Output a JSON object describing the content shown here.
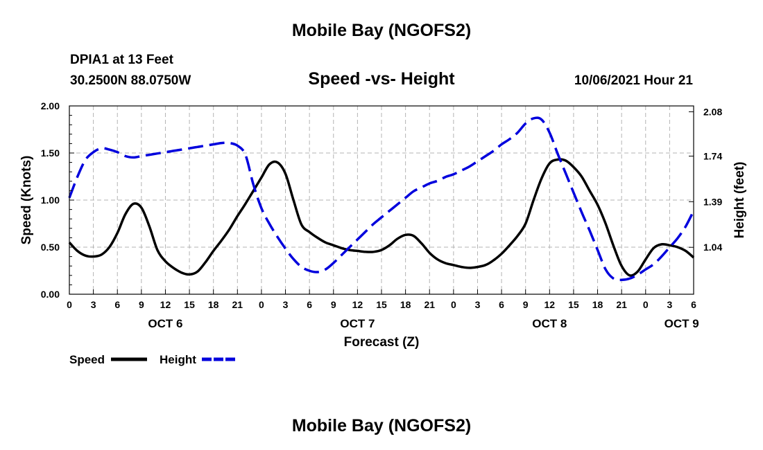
{
  "page": {
    "title_top": "Mobile Bay (NGOFS2)",
    "title_bottom": "Mobile Bay (NGOFS2)",
    "station_line": "DPIA1 at 13 Feet",
    "coords_line": "30.2500N  88.0750W",
    "chart_title": "Speed -vs- Height",
    "datetime": "10/06/2021 Hour 21"
  },
  "chart_data": {
    "type": "line",
    "title": "Speed -vs- Height",
    "xlabel": "Forecast (Z)",
    "ylabel": "Speed (Knots)",
    "y2label": "Height (feet)",
    "x_range_hours": [
      0,
      78
    ],
    "x_ticks_hours": [
      0,
      3,
      6,
      9,
      12,
      15,
      18,
      21,
      24,
      27,
      30,
      33,
      36,
      39,
      42,
      45,
      48,
      51,
      54,
      57,
      60,
      63,
      66,
      69,
      72,
      75,
      78
    ],
    "x_tick_labels": [
      "0",
      "3",
      "6",
      "9",
      "12",
      "15",
      "18",
      "21",
      "0",
      "3",
      "6",
      "9",
      "12",
      "15",
      "18",
      "21",
      "0",
      "3",
      "6",
      "9",
      "12",
      "15",
      "18",
      "21",
      "0",
      "3",
      "6"
    ],
    "day_labels": [
      {
        "label": "OCT 6",
        "hour": 12
      },
      {
        "label": "OCT 7",
        "hour": 36
      },
      {
        "label": "OCT 8",
        "hour": 60
      },
      {
        "label": "OCT 9",
        "hour": 76.5
      }
    ],
    "ylim": [
      0,
      2
    ],
    "y_ticks": [
      0,
      0.5,
      1.0,
      1.5,
      2.0
    ],
    "y_tick_labels": [
      "0.00",
      "0.50",
      "1.00",
      "1.50",
      "2.00"
    ],
    "y2lim": [
      0.68,
      2.125
    ],
    "y2_ticks": [
      1.04,
      1.39,
      1.74,
      2.08
    ],
    "y2_tick_labels": [
      "1.04",
      "1.39",
      "1.74",
      "2.08"
    ],
    "grid": true,
    "legend": [
      {
        "label": "Speed",
        "color": "#000000",
        "style": "solid"
      },
      {
        "label": "Height",
        "color": "#0000dd",
        "style": "dashed"
      }
    ],
    "series": [
      {
        "name": "Speed",
        "axis": "left",
        "color": "#000000",
        "x": [
          0,
          1,
          2,
          3,
          4,
          5,
          6,
          7,
          8,
          9,
          10,
          11,
          12,
          13,
          14,
          15,
          16,
          17,
          18,
          19,
          20,
          21,
          22,
          23,
          24,
          25,
          26,
          27,
          28,
          29,
          30,
          31,
          32,
          33,
          34,
          35,
          36,
          37,
          38,
          39,
          40,
          41,
          42,
          43,
          44,
          45,
          46,
          47,
          48,
          49,
          50,
          51,
          52,
          53,
          54,
          55,
          56,
          57,
          58,
          59,
          60,
          61,
          62,
          63,
          64,
          65,
          66,
          67,
          68,
          69,
          70,
          71,
          72,
          73,
          74,
          75,
          76,
          77,
          78
        ],
        "values": [
          0.55,
          0.46,
          0.41,
          0.4,
          0.42,
          0.5,
          0.65,
          0.85,
          0.96,
          0.92,
          0.72,
          0.47,
          0.35,
          0.28,
          0.23,
          0.21,
          0.24,
          0.34,
          0.46,
          0.57,
          0.69,
          0.83,
          0.96,
          1.1,
          1.24,
          1.38,
          1.4,
          1.28,
          1.0,
          0.74,
          0.66,
          0.6,
          0.55,
          0.52,
          0.49,
          0.47,
          0.46,
          0.45,
          0.45,
          0.47,
          0.52,
          0.59,
          0.63,
          0.62,
          0.54,
          0.44,
          0.37,
          0.33,
          0.31,
          0.29,
          0.28,
          0.29,
          0.31,
          0.36,
          0.43,
          0.52,
          0.62,
          0.75,
          1.0,
          1.23,
          1.39,
          1.43,
          1.42,
          1.35,
          1.25,
          1.1,
          0.95,
          0.75,
          0.51,
          0.3,
          0.2,
          0.24,
          0.37,
          0.49,
          0.53,
          0.52,
          0.5,
          0.46,
          0.39
        ]
      },
      {
        "name": "Height",
        "axis": "right",
        "color": "#0000dd",
        "x": [
          0,
          1,
          2,
          3,
          4,
          5,
          6,
          7,
          8,
          9,
          10,
          11,
          12,
          13,
          14,
          15,
          16,
          17,
          18,
          19,
          20,
          21,
          22,
          23,
          24,
          25,
          26,
          27,
          28,
          29,
          30,
          31,
          32,
          33,
          34,
          35,
          36,
          37,
          38,
          39,
          40,
          41,
          42,
          43,
          44,
          45,
          46,
          47,
          48,
          49,
          50,
          51,
          52,
          53,
          54,
          55,
          56,
          57,
          58,
          59,
          60,
          61,
          62,
          63,
          64,
          65,
          66,
          67,
          68,
          69,
          70,
          71,
          72,
          73,
          74,
          75,
          76,
          77,
          78
        ],
        "values": [
          1.42,
          1.58,
          1.71,
          1.77,
          1.8,
          1.79,
          1.77,
          1.74,
          1.73,
          1.74,
          1.75,
          1.76,
          1.77,
          1.78,
          1.79,
          1.8,
          1.81,
          1.82,
          1.83,
          1.84,
          1.84,
          1.82,
          1.75,
          1.52,
          1.34,
          1.22,
          1.12,
          1.03,
          0.95,
          0.89,
          0.86,
          0.85,
          0.87,
          0.92,
          0.98,
          1.04,
          1.1,
          1.16,
          1.22,
          1.27,
          1.32,
          1.37,
          1.42,
          1.47,
          1.5,
          1.53,
          1.55,
          1.58,
          1.6,
          1.63,
          1.66,
          1.7,
          1.74,
          1.78,
          1.83,
          1.87,
          1.92,
          1.99,
          2.03,
          2.02,
          1.92,
          1.76,
          1.61,
          1.46,
          1.31,
          1.17,
          1.02,
          0.87,
          0.8,
          0.79,
          0.8,
          0.83,
          0.87,
          0.91,
          0.97,
          1.04,
          1.11,
          1.2,
          1.32
        ]
      }
    ]
  }
}
